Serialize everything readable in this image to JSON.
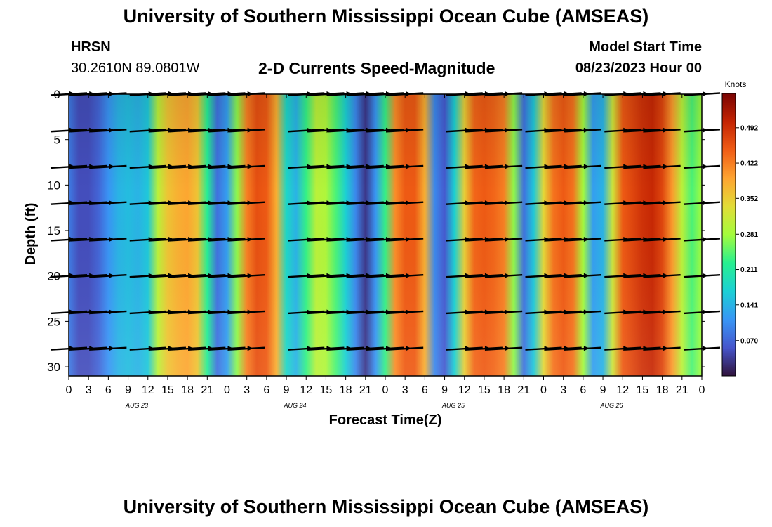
{
  "header": {
    "title": "University of Southern Mississippi Ocean Cube (AMSEAS)",
    "station": "HRSN",
    "coordinates": "30.2610N  89.0801W",
    "subtitle": "2-D Currents Speed-Magnitude",
    "model_start_label": "Model Start Time",
    "model_start_value": "08/23/2023 Hour 00"
  },
  "footer": {
    "title": "University of Southern Mississippi Ocean Cube (AMSEAS)"
  },
  "chart_data": {
    "type": "heatmap",
    "title": "2-D Currents Speed-Magnitude",
    "xlabel": "Forecast Time(Z)",
    "ylabel": "Depth (ft)",
    "x_hours_range": [
      0,
      96
    ],
    "x_tick_labels": [
      "0",
      "3",
      "6",
      "9",
      "12",
      "15",
      "18",
      "21",
      "0",
      "3",
      "6",
      "9",
      "12",
      "15",
      "18",
      "21",
      "0",
      "3",
      "6",
      "9",
      "12",
      "15",
      "18",
      "21",
      "0",
      "3",
      "6",
      "9",
      "12",
      "15",
      "18",
      "21",
      "0"
    ],
    "day_labels": [
      {
        "label": "AUG 23",
        "hour": 10
      },
      {
        "label": "AUG 24",
        "hour": 34
      },
      {
        "label": "AUG 25",
        "hour": 58
      },
      {
        "label": "AUG 26",
        "hour": 82
      }
    ],
    "y_ticks": [
      0,
      5,
      10,
      15,
      20,
      25,
      30
    ],
    "ylim": [
      0,
      31
    ],
    "colorbar": {
      "label": "Knots",
      "ticks": [
        "0.492",
        "0.422",
        "0.352",
        "0.281",
        "0.211",
        "0.141",
        "0.070"
      ],
      "tick_values": [
        0.492,
        0.422,
        0.352,
        0.281,
        0.211,
        0.141,
        0.07
      ],
      "range": [
        0.0,
        0.56
      ]
    },
    "speed_profile": {
      "hours": [
        0,
        1.5,
        3,
        4.5,
        6,
        7.5,
        9,
        10.5,
        12,
        13.5,
        15,
        16.5,
        18,
        19.5,
        21,
        22.5,
        24,
        25.5,
        27,
        28.5,
        30,
        31.5,
        33,
        34.5,
        36,
        37.5,
        39,
        40.5,
        42,
        43.5,
        45,
        46.5,
        48,
        49.5,
        51,
        52.5,
        54,
        55.5,
        57,
        58.5,
        60,
        61.5,
        63,
        64.5,
        66,
        67.5,
        69,
        70.5,
        72,
        73.5,
        75,
        76.5,
        78,
        79.5,
        81,
        82.5,
        84,
        85.5,
        87,
        88.5,
        90,
        91.5,
        93,
        94.5,
        96
      ],
      "speed_knots": [
        0.09,
        0.05,
        0.05,
        0.07,
        0.11,
        0.14,
        0.15,
        0.14,
        0.16,
        0.3,
        0.36,
        0.38,
        0.39,
        0.36,
        0.22,
        0.08,
        0.12,
        0.27,
        0.42,
        0.46,
        0.45,
        0.38,
        0.18,
        0.14,
        0.23,
        0.3,
        0.29,
        0.24,
        0.17,
        0.1,
        0.03,
        0.11,
        0.23,
        0.41,
        0.45,
        0.45,
        0.38,
        0.1,
        0.06,
        0.17,
        0.35,
        0.44,
        0.45,
        0.44,
        0.42,
        0.27,
        0.08,
        0.16,
        0.34,
        0.43,
        0.45,
        0.43,
        0.28,
        0.12,
        0.14,
        0.32,
        0.45,
        0.47,
        0.49,
        0.5,
        0.47,
        0.4,
        0.3,
        0.24,
        0.28
      ]
    },
    "vector_depths_ft": [
      0,
      4,
      8,
      12,
      16,
      20,
      24,
      28
    ],
    "vector_hours": [
      0,
      3,
      6,
      12,
      15,
      18,
      21,
      24,
      27,
      36,
      39,
      42,
      45,
      48,
      51,
      60,
      63,
      66,
      72,
      75,
      78,
      84,
      87,
      90,
      96
    ]
  }
}
